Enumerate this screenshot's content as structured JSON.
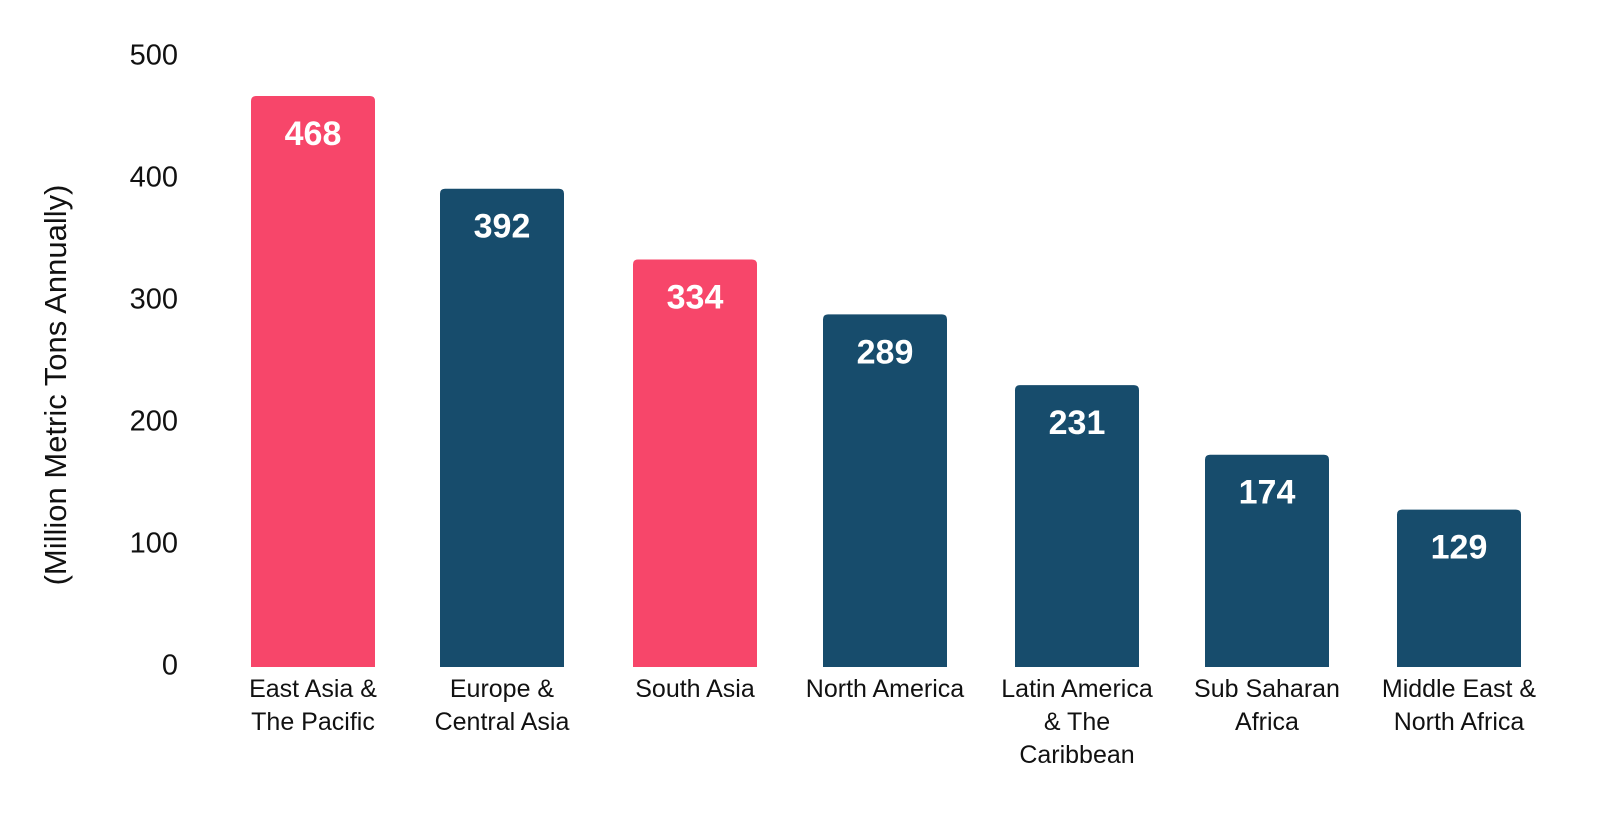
{
  "chart_data": {
    "type": "bar",
    "title": "",
    "xlabel": "",
    "ylabel": "(Million Metric Tons Annually)",
    "ylim": [
      0,
      500
    ],
    "yticks": [
      0,
      100,
      200,
      300,
      400,
      500
    ],
    "grid": false,
    "legend": "none",
    "categories": [
      [
        "East Asia &",
        "The Pacific"
      ],
      [
        "Europe &",
        "Central Asia"
      ],
      [
        "South Asia"
      ],
      [
        "North America"
      ],
      [
        "Latin America",
        "& The",
        "Caribbean"
      ],
      [
        "Sub Saharan",
        "Africa"
      ],
      [
        "Middle East &",
        "North Africa"
      ]
    ],
    "values": [
      468,
      392,
      334,
      289,
      231,
      174,
      129
    ],
    "bar_colors": [
      "#f7466a",
      "#174c6c",
      "#f7466a",
      "#174c6c",
      "#174c6c",
      "#174c6c",
      "#174c6c"
    ],
    "data_label_color": "#ffffff",
    "text_color": "#111111"
  }
}
